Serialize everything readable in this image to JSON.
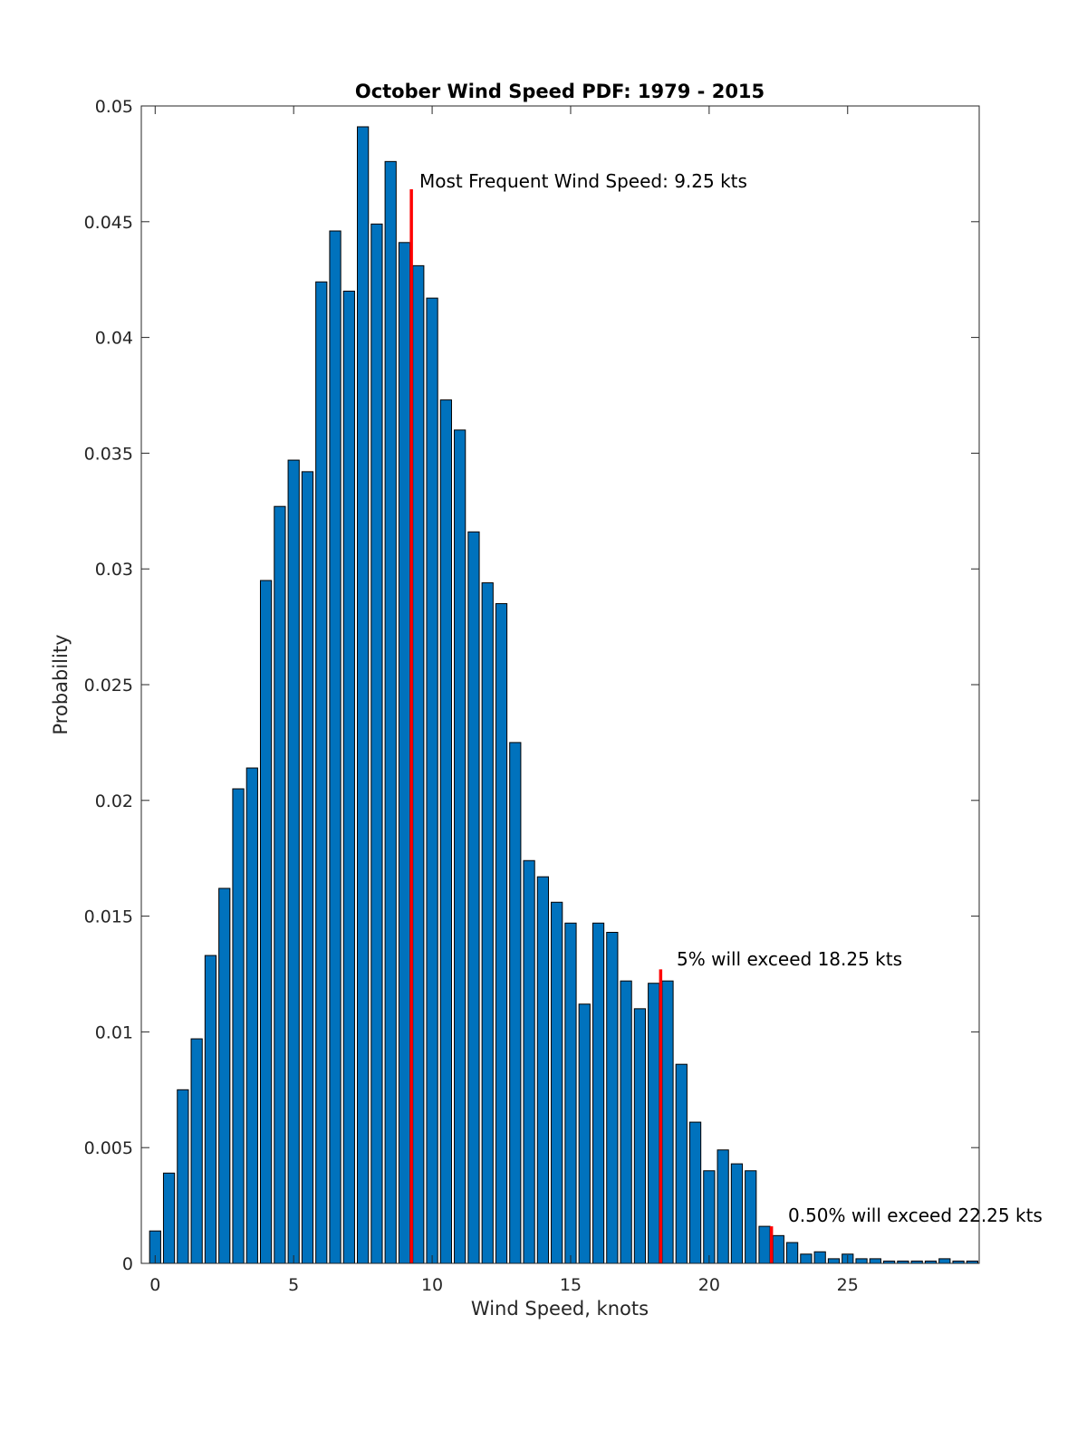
{
  "chart_data": {
    "type": "bar",
    "title": "October Wind Speed PDF: 1979 - 2015",
    "xlabel": "Wind Speed, knots",
    "ylabel": "Probability",
    "xlim": [
      -0.5,
      29.75
    ],
    "ylim": [
      0,
      0.05
    ],
    "xticks": [
      0,
      5,
      10,
      15,
      20,
      25
    ],
    "xtick_labels": [
      "0",
      "5",
      "10",
      "15",
      "20",
      "25"
    ],
    "yticks": [
      0,
      0.005,
      0.01,
      0.015,
      0.02,
      0.025,
      0.03,
      0.035,
      0.04,
      0.045,
      0.05
    ],
    "ytick_labels": [
      "0",
      "0.005",
      "0.01",
      "0.015",
      "0.02",
      "0.025",
      "0.03",
      "0.035",
      "0.04",
      "0.045",
      "0.05"
    ],
    "bar_width": 0.4,
    "bar_color": "#0072BD",
    "x": [
      0,
      0.5,
      1,
      1.5,
      2,
      2.5,
      3,
      3.5,
      4,
      4.5,
      5,
      5.5,
      6,
      6.5,
      7,
      7.5,
      8,
      8.5,
      9,
      9.5,
      10,
      10.5,
      11,
      11.5,
      12,
      12.5,
      13,
      13.5,
      14,
      14.5,
      15,
      15.5,
      16,
      16.5,
      17,
      17.5,
      18,
      18.5,
      19,
      19.5,
      20,
      20.5,
      21,
      21.5,
      22,
      22.5,
      23,
      23.5,
      24,
      24.5,
      25,
      25.5,
      26,
      26.5,
      27,
      27.5,
      28,
      28.5,
      29,
      29.5
    ],
    "values": [
      0.0014,
      0.0039,
      0.0075,
      0.0097,
      0.0133,
      0.0162,
      0.0205,
      0.0214,
      0.0295,
      0.0327,
      0.0347,
      0.0342,
      0.0424,
      0.0446,
      0.042,
      0.0491,
      0.0449,
      0.0476,
      0.0441,
      0.0431,
      0.0417,
      0.0373,
      0.036,
      0.0316,
      0.0294,
      0.0285,
      0.0225,
      0.0174,
      0.0167,
      0.0156,
      0.0147,
      0.0112,
      0.0147,
      0.0143,
      0.0122,
      0.011,
      0.0121,
      0.0122,
      0.0086,
      0.0061,
      0.004,
      0.0049,
      0.0043,
      0.004,
      0.0016,
      0.0012,
      0.0009,
      0.0004,
      0.0005,
      0.0002,
      0.0004,
      0.0002,
      0.0002,
      0.0001,
      0.0001,
      0.0001,
      0.0001,
      0.0002,
      0.0001,
      0.0001
    ],
    "markers": [
      {
        "x": 9.25,
        "y_top": 0.0464,
        "color": "#FF0000",
        "label": "Most Frequent Wind Speed: 9.25 kts"
      },
      {
        "x": 18.25,
        "y_top": 0.0127,
        "color": "#FF0000",
        "label": "5% will exceed 18.25 kts"
      },
      {
        "x": 22.25,
        "y_top": 0.0016,
        "color": "#FF0000",
        "label": "0.50% will exceed 22.25 kts"
      }
    ]
  }
}
